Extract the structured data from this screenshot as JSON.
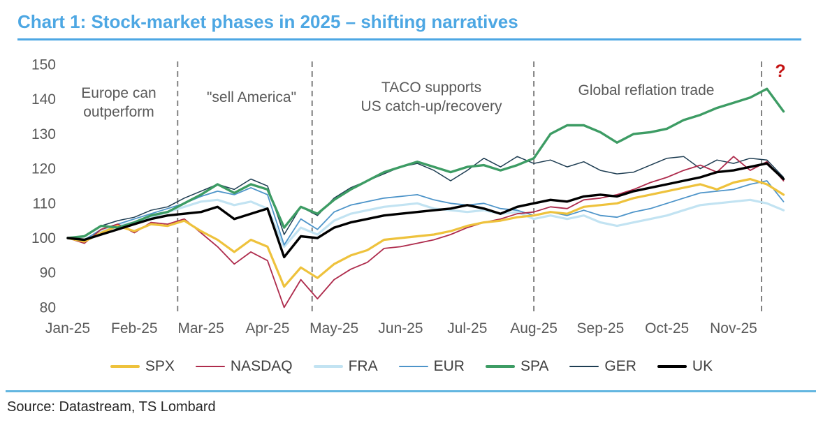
{
  "title": "Chart 1: Stock-market phases in 2025 – shifting narratives",
  "source": "Source: Datastream, TS Lombard",
  "annotations": {
    "europe_line1": "Europe can",
    "europe_line2": "outperform",
    "sell_america": "\"sell America\"",
    "taco_line1": "TACO supports",
    "taco_line2": "US catch-up/recovery",
    "reflation": "Global reflation trade",
    "question_mark": "?"
  },
  "colors": {
    "title_blue": "#4DA7E3",
    "footer_rule_blue": "#63B6E0",
    "phase_line_gray": "#808080",
    "axis_text_gray": "#595959",
    "question_mark_red": "#C41212"
  },
  "chart_data": {
    "type": "line",
    "title": "Stock-market phases in 2025 – shifting narratives",
    "xlabel": "",
    "ylabel": "",
    "grid": false,
    "legend_position": "bottom",
    "ylim": [
      80,
      150
    ],
    "y_ticks": [
      80,
      90,
      100,
      110,
      120,
      130,
      140,
      150
    ],
    "x_tick_labels": [
      "Jan-25",
      "Feb-25",
      "Mar-25",
      "Apr-25",
      "May-25",
      "Jun-25",
      "Jul-25",
      "Aug-25",
      "Sep-25",
      "Oct-25",
      "Nov-25"
    ],
    "phase_lines_months": [
      1.65,
      3.67,
      7.0,
      10.42
    ],
    "x_months": [
      0,
      0.25,
      0.5,
      0.75,
      1,
      1.25,
      1.5,
      1.75,
      2,
      2.25,
      2.5,
      2.75,
      3,
      3.25,
      3.5,
      3.75,
      4,
      4.25,
      4.5,
      4.75,
      5,
      5.25,
      5.5,
      5.75,
      6,
      6.25,
      6.5,
      6.75,
      7,
      7.25,
      7.5,
      7.75,
      8,
      8.25,
      8.5,
      8.75,
      9,
      9.25,
      9.5,
      9.75,
      10,
      10.25,
      10.5,
      10.75
    ],
    "series": [
      {
        "name": "SPX",
        "color": "#EEC23C",
        "thickness": 3.2,
        "values": [
          100,
          99,
          101.5,
          103.5,
          102,
          104,
          103.5,
          105,
          102,
          99.5,
          96,
          99.5,
          97.5,
          86,
          91.5,
          88.5,
          92.5,
          95,
          96.5,
          99.5,
          100,
          100.5,
          101,
          102,
          103.5,
          104.5,
          105,
          106,
          106.5,
          107.5,
          107,
          109,
          109.5,
          110,
          111.5,
          112.5,
          113.5,
          114.5,
          115.5,
          114,
          116,
          117,
          115.5,
          112.5
        ]
      },
      {
        "name": "NASDAQ",
        "color": "#AE2B4C",
        "thickness": 1.8,
        "values": [
          100,
          98.5,
          102.5,
          104,
          101.5,
          104.5,
          104,
          105.5,
          101.5,
          97.5,
          92.5,
          96,
          93.5,
          80,
          88,
          82.5,
          88,
          91,
          93,
          97,
          97.5,
          98.5,
          99.5,
          101,
          103,
          104.5,
          105.5,
          107,
          107.5,
          109,
          108.5,
          111,
          111.5,
          112.5,
          114,
          116,
          117.5,
          119.5,
          121,
          119,
          123.5,
          119.5,
          122,
          116.5
        ]
      },
      {
        "name": "FRA",
        "color": "#C2E3F2",
        "thickness": 3.2,
        "values": [
          100,
          99.5,
          102,
          103.5,
          104.5,
          106,
          107.5,
          109,
          110.5,
          111,
          109.5,
          110.5,
          108.5,
          97.5,
          103,
          101,
          105,
          107,
          108,
          109,
          109.5,
          110,
          108.5,
          108,
          107.5,
          108,
          107,
          107.5,
          105.5,
          106.5,
          105.5,
          106.5,
          104.5,
          103.5,
          104.5,
          105.5,
          106.5,
          108,
          109.5,
          110,
          110.5,
          111,
          110,
          108
        ]
      },
      {
        "name": "EUR",
        "color": "#4D94C9",
        "thickness": 1.8,
        "values": [
          100,
          99.5,
          102.5,
          104,
          105.5,
          107,
          108.5,
          110,
          112,
          113.5,
          112.5,
          114.5,
          112.5,
          98,
          105.5,
          102.5,
          107.5,
          109.5,
          110.5,
          111.5,
          112,
          112.5,
          111,
          110,
          109.5,
          110,
          108.5,
          108,
          106.5,
          107.5,
          106.5,
          108,
          106.5,
          106,
          107.5,
          108.5,
          110,
          111.5,
          113,
          113.5,
          114,
          115.5,
          116.5,
          110.5
        ]
      },
      {
        "name": "SPA",
        "color": "#3D9C64",
        "thickness": 3.4,
        "values": [
          100,
          100.5,
          103.5,
          103,
          104.5,
          106.5,
          107.5,
          110,
          112.5,
          115.5,
          113,
          115.5,
          114,
          103,
          109,
          107,
          111,
          114,
          116.5,
          119,
          120.5,
          122,
          120.5,
          119,
          120.5,
          121,
          119.5,
          121,
          123,
          130,
          132.5,
          132.5,
          130.5,
          127.5,
          130,
          130.5,
          131.5,
          134,
          135.5,
          137.5,
          139,
          140.5,
          143,
          136.5
        ]
      },
      {
        "name": "GER",
        "color": "#1E3D52",
        "thickness": 1.5,
        "values": [
          100,
          100.5,
          103.5,
          105,
          106,
          108,
          109,
          111.5,
          113.5,
          115.5,
          114,
          117,
          115,
          101,
          109,
          106.5,
          111.5,
          114.5,
          116.5,
          118.5,
          120.5,
          121.5,
          119.5,
          116.5,
          119.5,
          123,
          120.5,
          123.5,
          121.5,
          122.5,
          120.5,
          122,
          119.5,
          118.5,
          119,
          121,
          123,
          123.5,
          120,
          122.5,
          121.5,
          123,
          122.5,
          117.5
        ]
      },
      {
        "name": "UK",
        "color": "#000000",
        "thickness": 3.4,
        "values": [
          100,
          99.5,
          101,
          102.5,
          104,
          105.5,
          106.5,
          107,
          107.5,
          109,
          105.5,
          107,
          108.5,
          94.5,
          100.5,
          100,
          103,
          104.5,
          105.5,
          106.5,
          107,
          107.5,
          108,
          108.5,
          109.5,
          108.5,
          107,
          109,
          110,
          111,
          110.5,
          112,
          112.5,
          112,
          113.5,
          114.5,
          115.5,
          116.5,
          117.5,
          119,
          119.5,
          120.5,
          121.5,
          117
        ]
      }
    ]
  }
}
